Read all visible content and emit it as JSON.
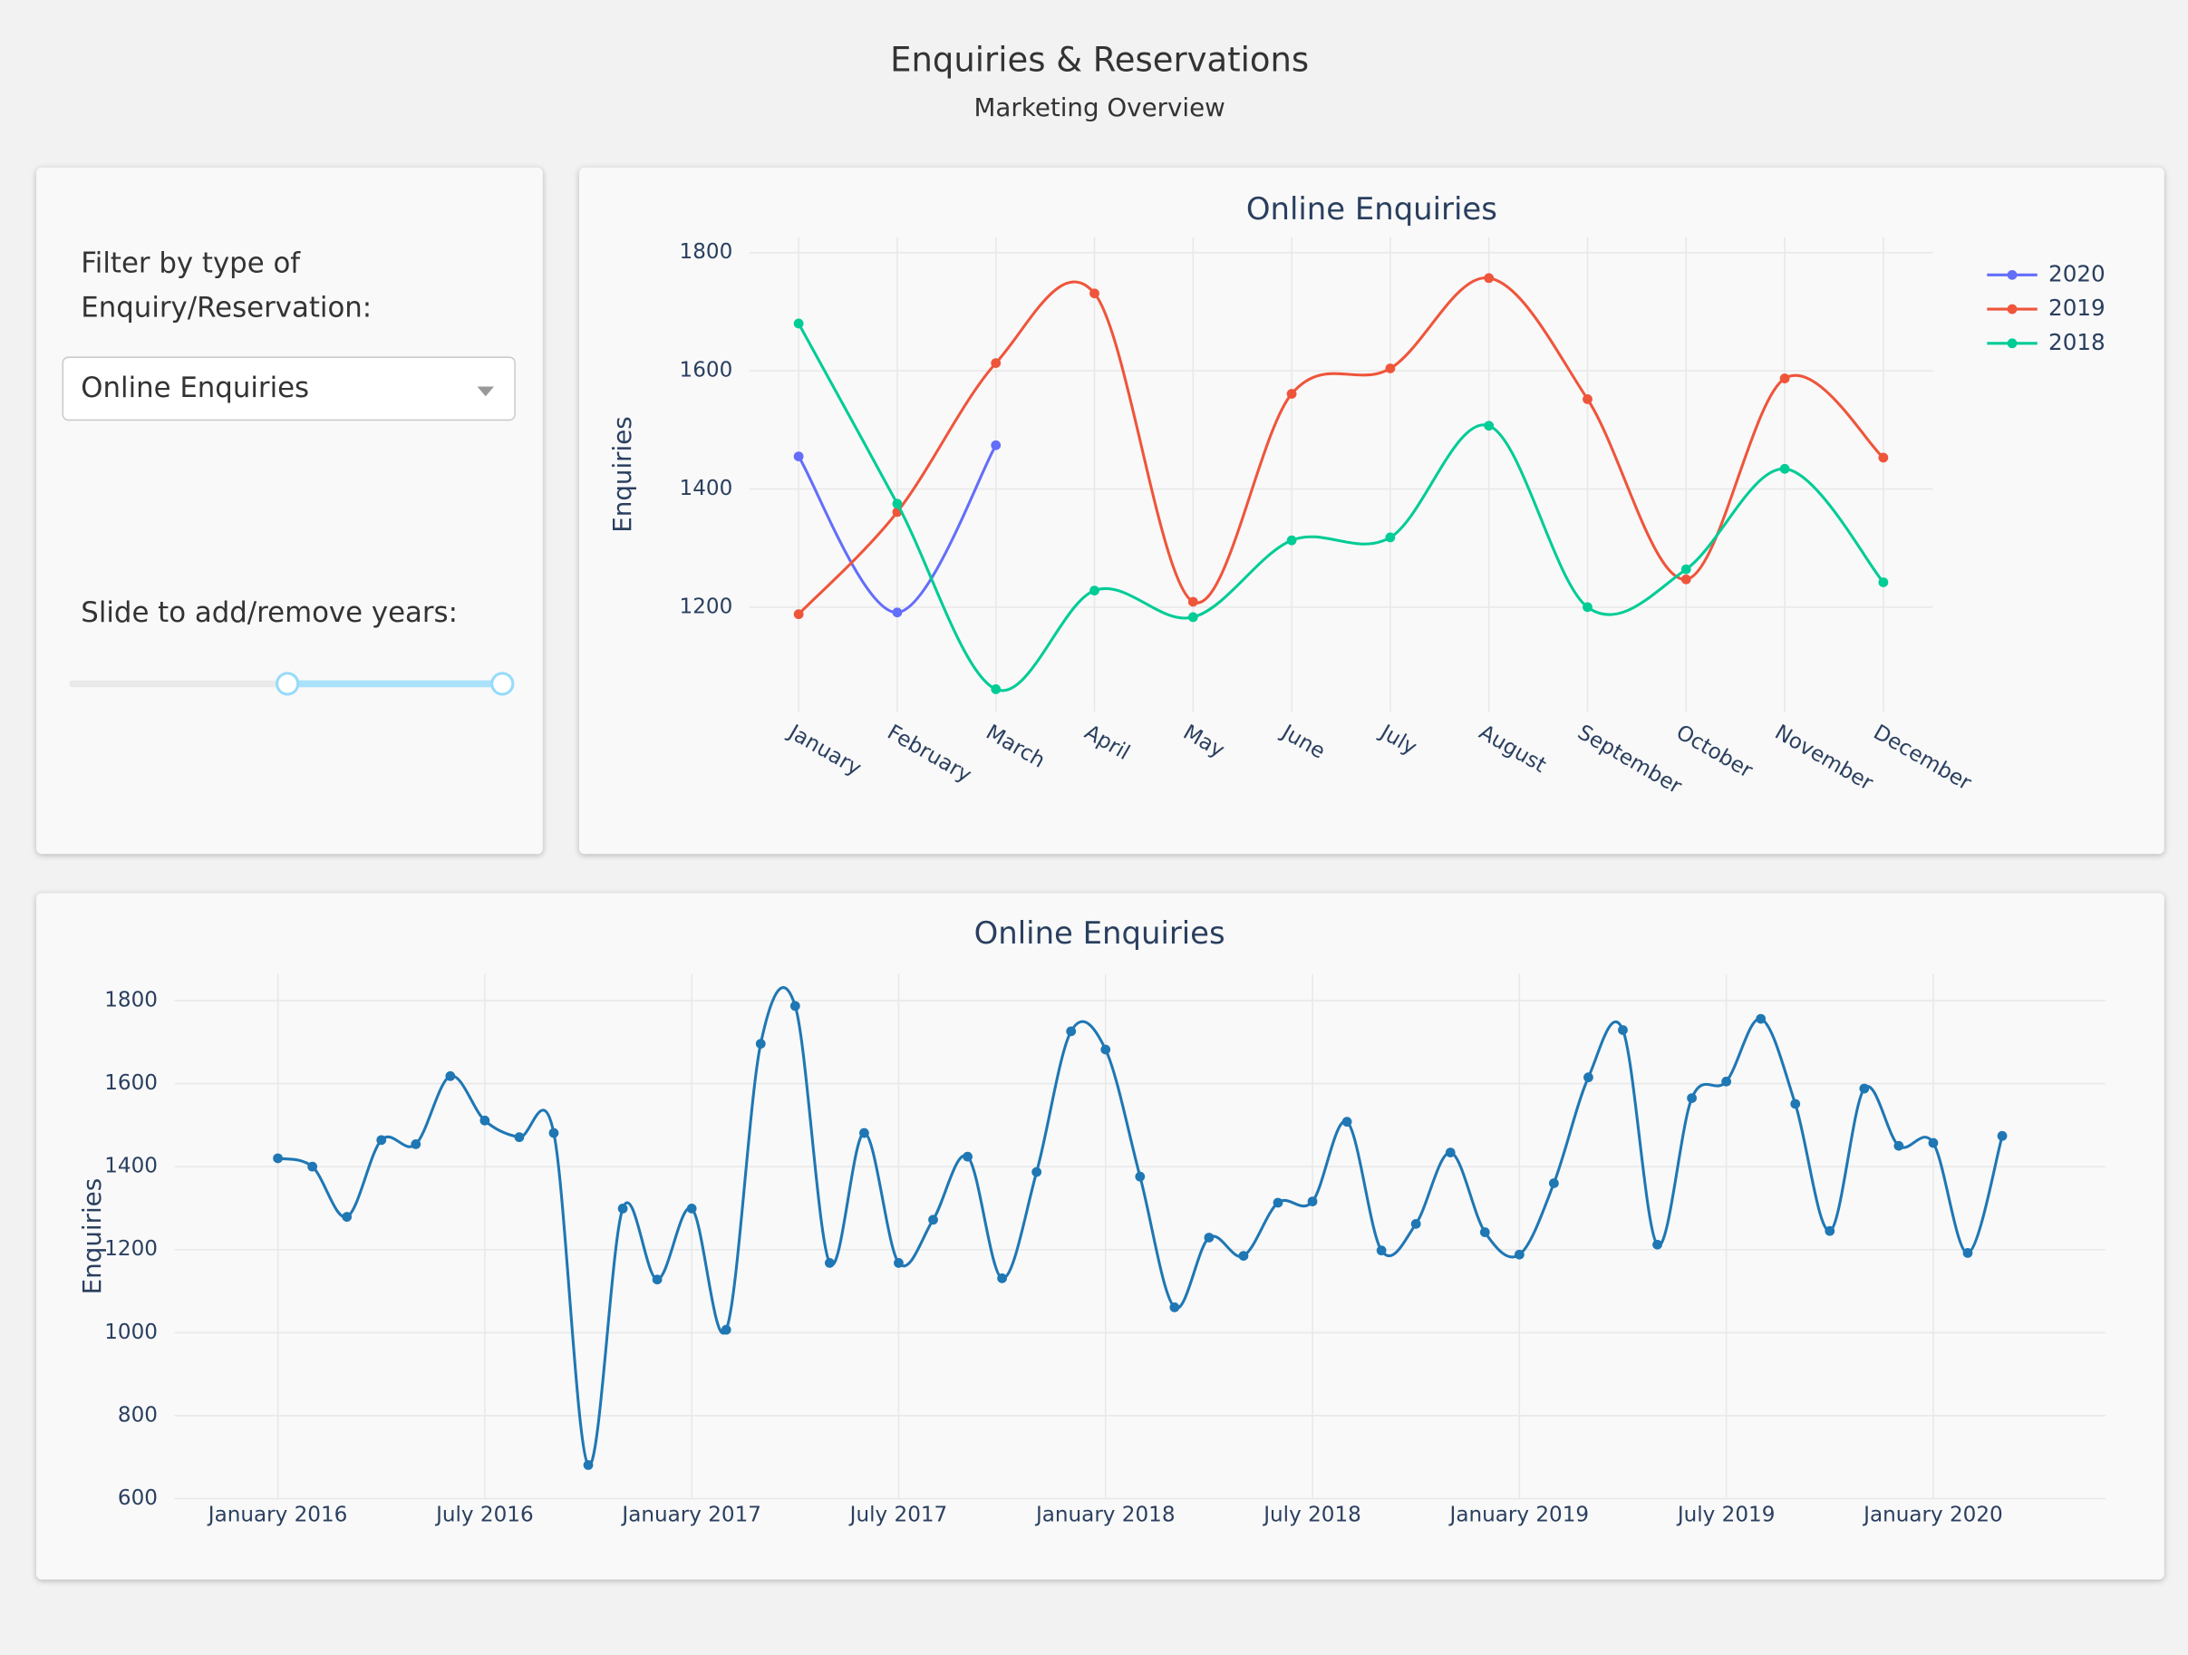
{
  "header": {
    "title": "Enquiries & Reservations",
    "subtitle": "Marketing Overview"
  },
  "controls": {
    "filter_label": "Filter by type of Enquiry/Reservation:",
    "dropdown_value": "Online Enquiries",
    "slider_label": "Slide to add/remove years:",
    "slider": {
      "min": 2016,
      "max": 2020,
      "value": [
        2018,
        2020
      ]
    }
  },
  "chart_data": [
    {
      "type": "line",
      "title": "Online Enquiries",
      "y_label": "Enquiries",
      "categories": [
        "January",
        "February",
        "March",
        "April",
        "May",
        "June",
        "July",
        "August",
        "September",
        "October",
        "November",
        "December"
      ],
      "series": [
        {
          "name": "2020",
          "color": "#636efa",
          "values": [
            1455,
            1191,
            1474,
            null,
            null,
            null,
            null,
            null,
            null,
            null,
            null,
            null
          ]
        },
        {
          "name": "2019",
          "color": "#ef553b",
          "values": [
            1188,
            1361,
            1613,
            1731,
            1209,
            1561,
            1604,
            1757,
            1552,
            1247,
            1587,
            1453
          ]
        },
        {
          "name": "2018",
          "color": "#00cc96",
          "values": [
            1680,
            1375,
            1061,
            1228,
            1183,
            1313,
            1318,
            1507,
            1200,
            1264,
            1434,
            1242
          ]
        }
      ],
      "ylim": [
        1023,
        1826
      ],
      "yticks": [
        1200,
        1400,
        1600,
        1800
      ],
      "grid": true,
      "legend": "upper right"
    },
    {
      "type": "line",
      "title": "Online Enquiries",
      "y_label": "Enquiries",
      "color": "#1f77b4",
      "x": [
        "2016-01",
        "2016-02",
        "2016-03",
        "2016-04",
        "2016-05",
        "2016-06",
        "2016-07",
        "2016-08",
        "2016-09",
        "2016-10",
        "2016-11",
        "2016-12",
        "2017-01",
        "2017-02",
        "2017-03",
        "2017-04",
        "2017-05",
        "2017-06",
        "2017-07",
        "2017-08",
        "2017-09",
        "2017-10",
        "2017-11",
        "2017-12",
        "2018-01",
        "2018-02",
        "2018-03",
        "2018-04",
        "2018-05",
        "2018-06",
        "2018-07",
        "2018-08",
        "2018-09",
        "2018-10",
        "2018-11",
        "2018-12",
        "2019-01",
        "2019-02",
        "2019-03",
        "2019-04",
        "2019-05",
        "2019-06",
        "2019-07",
        "2019-08",
        "2019-09",
        "2019-10",
        "2019-11",
        "2019-12",
        "2020-01",
        "2020-02",
        "2020-03"
      ],
      "values": [
        1420,
        1400,
        1279,
        1464,
        1454,
        1618,
        1511,
        1471,
        1481,
        681,
        1299,
        1128,
        1299,
        1007,
        1696,
        1787,
        1168,
        1481,
        1168,
        1272,
        1424,
        1131,
        1387,
        1726,
        1682,
        1376,
        1061,
        1229,
        1185,
        1313,
        1316,
        1508,
        1198,
        1262,
        1434,
        1242,
        1188,
        1360,
        1615,
        1729,
        1212,
        1565,
        1605,
        1756,
        1551,
        1245,
        1588,
        1450,
        1457,
        1192,
        1474
      ],
      "xlim": [
        "2015-10",
        "2020-06"
      ],
      "xticks": [
        {
          "value": "2016-01",
          "label": "January 2016"
        },
        {
          "value": "2016-07",
          "label": "July 2016"
        },
        {
          "value": "2017-01",
          "label": "January 2017"
        },
        {
          "value": "2017-07",
          "label": "July 2017"
        },
        {
          "value": "2018-01",
          "label": "January 2018"
        },
        {
          "value": "2018-07",
          "label": "July 2018"
        },
        {
          "value": "2019-01",
          "label": "January 2019"
        },
        {
          "value": "2019-07",
          "label": "July 2019"
        },
        {
          "value": "2020-01",
          "label": "January 2020"
        }
      ],
      "ylim": [
        600,
        1864
      ],
      "yticks": [
        600,
        800,
        1000,
        1200,
        1400,
        1600,
        1800
      ],
      "grid": true
    }
  ]
}
